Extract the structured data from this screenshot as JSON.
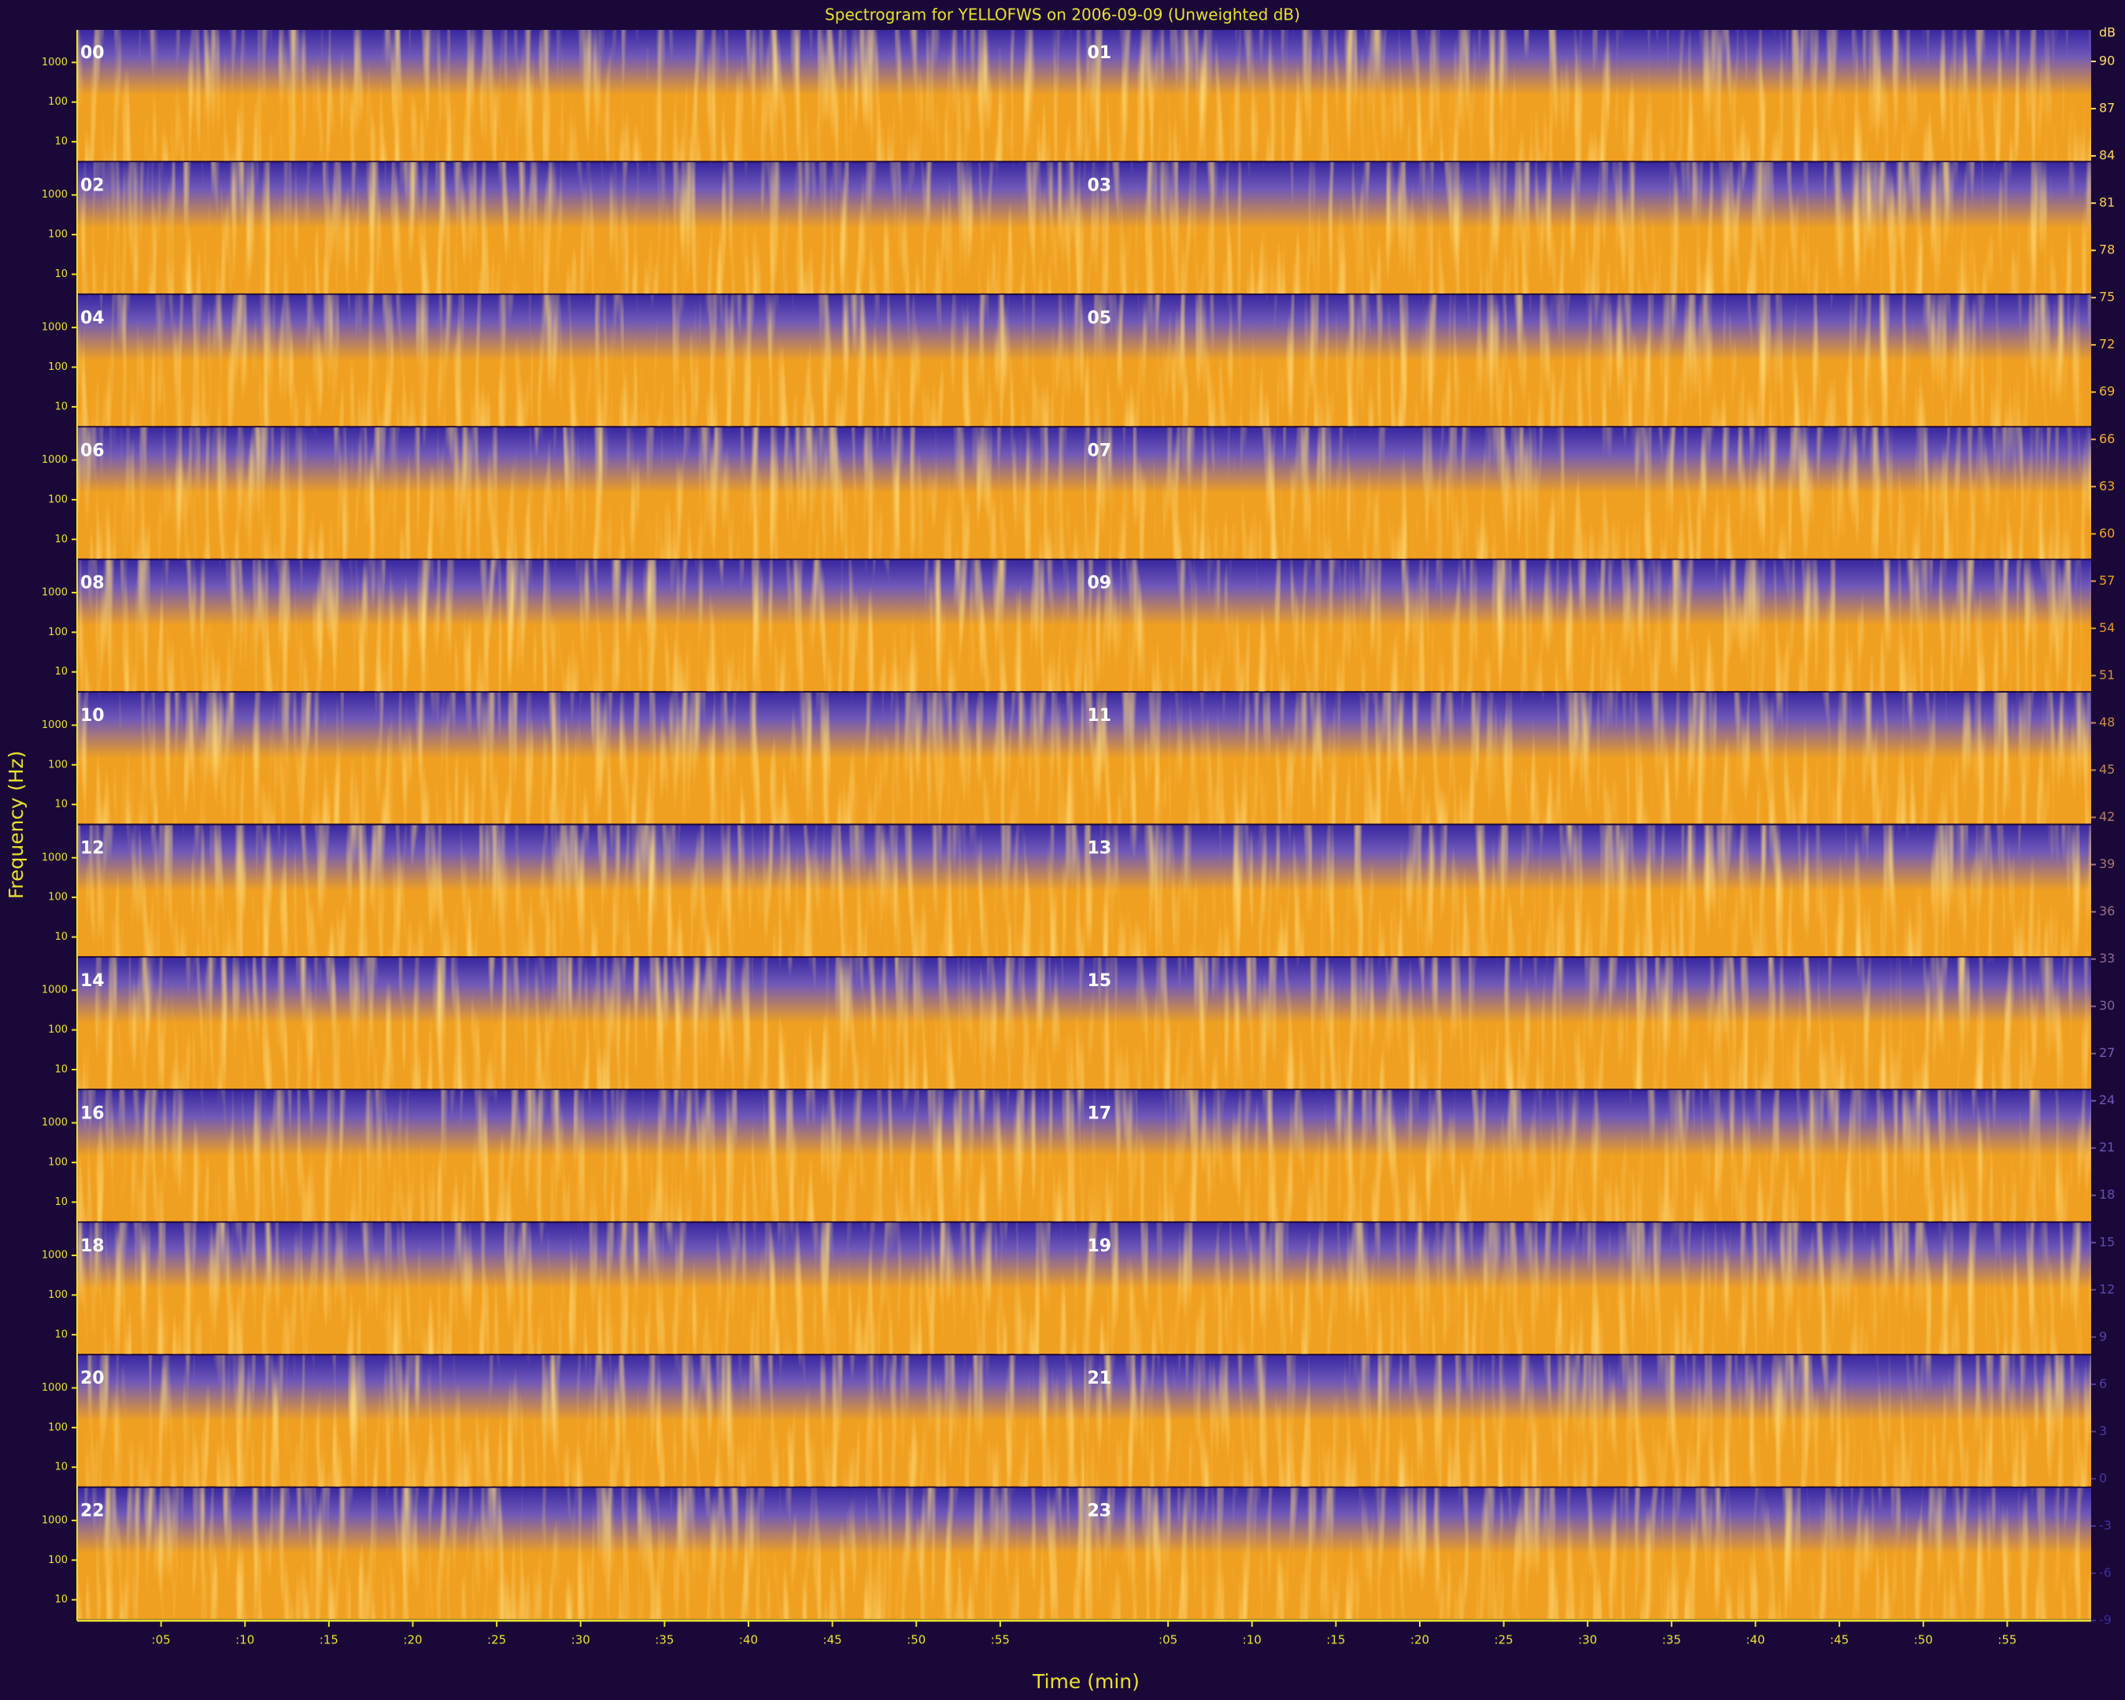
{
  "chart_data": {
    "type": "spectrogram",
    "title": "Spectrogram for YELLOFWS on 2006-09-09 (Unweighted dB)",
    "xlabel": "Time (min)",
    "ylabel": "Frequency (Hz)",
    "panels": [
      "00",
      "01",
      "02",
      "03",
      "04",
      "05",
      "06",
      "07",
      "08",
      "09",
      "10",
      "11",
      "12",
      "13",
      "14",
      "15",
      "16",
      "17",
      "18",
      "19",
      "20",
      "21",
      "22",
      "23"
    ],
    "xlim": [
      0,
      60
    ],
    "xticks": [
      {
        "value": 5,
        "label": ":05"
      },
      {
        "value": 10,
        "label": ":10"
      },
      {
        "value": 15,
        "label": ":15"
      },
      {
        "value": 20,
        "label": ":20"
      },
      {
        "value": 25,
        "label": ":25"
      },
      {
        "value": 30,
        "label": ":30"
      },
      {
        "value": 35,
        "label": ":35"
      },
      {
        "value": 40,
        "label": ":40"
      },
      {
        "value": 45,
        "label": ":45"
      },
      {
        "value": 50,
        "label": ":50"
      },
      {
        "value": 55,
        "label": ":55"
      }
    ],
    "ylim": [
      3,
      6600
    ],
    "yscale": "log",
    "yticks": [
      10,
      100,
      1000
    ],
    "colorbar": {
      "label": "dB",
      "lim": [
        -9,
        92
      ],
      "ticks": [
        90,
        87,
        84,
        81,
        78,
        75,
        72,
        69,
        66,
        63,
        60,
        57,
        54,
        51,
        48,
        45,
        42,
        39,
        36,
        33,
        30,
        27,
        24,
        21,
        18,
        15,
        12,
        9,
        6,
        3,
        0,
        -3,
        -6,
        -9
      ]
    },
    "colormap": [
      "#3828a0",
      "#7058b8",
      "#f0a020",
      "#ffe070"
    ]
  }
}
